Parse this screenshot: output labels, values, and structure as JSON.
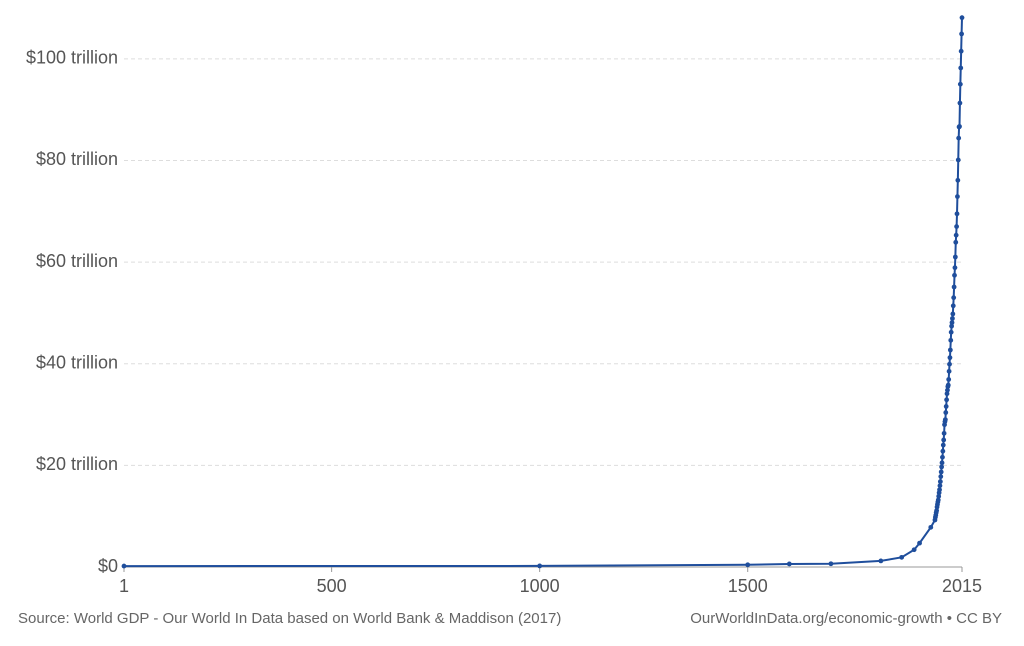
{
  "chart_data": {
    "type": "line",
    "x": [
      1,
      1000,
      1500,
      1600,
      1700,
      1820,
      1870,
      1900,
      1913,
      1940,
      1950,
      1951,
      1952,
      1953,
      1954,
      1955,
      1956,
      1957,
      1958,
      1959,
      1960,
      1961,
      1962,
      1963,
      1964,
      1965,
      1966,
      1967,
      1968,
      1969,
      1970,
      1971,
      1972,
      1973,
      1974,
      1975,
      1976,
      1977,
      1978,
      1979,
      1980,
      1981,
      1982,
      1983,
      1984,
      1985,
      1986,
      1987,
      1988,
      1989,
      1990,
      1991,
      1992,
      1993,
      1994,
      1995,
      1996,
      1997,
      1998,
      1999,
      2000,
      2001,
      2002,
      2003,
      2004,
      2005,
      2006,
      2007,
      2008,
      2009,
      2010,
      2011,
      2012,
      2013,
      2014,
      2015
    ],
    "values": [
      0.18,
      0.21,
      0.43,
      0.6,
      0.64,
      1.2,
      1.9,
      3.4,
      4.7,
      7.8,
      9.25,
      9.8,
      10.2,
      10.7,
      11.1,
      11.8,
      12.3,
      12.8,
      13.2,
      13.9,
      14.6,
      15.2,
      16.0,
      16.8,
      17.8,
      18.7,
      19.7,
      20.5,
      21.6,
      22.8,
      24.0,
      25.0,
      26.3,
      28.0,
      28.6,
      29.0,
      30.4,
      31.6,
      32.9,
      34.1,
      34.8,
      35.5,
      35.8,
      36.9,
      38.5,
      39.9,
      41.2,
      42.7,
      44.6,
      46.2,
      47.4,
      48.1,
      48.9,
      49.8,
      51.4,
      53.0,
      55.1,
      57.4,
      58.9,
      61.0,
      63.9,
      65.3,
      67.0,
      69.5,
      72.9,
      76.1,
      80.1,
      84.4,
      86.6,
      86.7,
      91.3,
      95.0,
      98.2,
      101.5,
      104.9,
      108.1
    ],
    "color": "#1f4e9c",
    "xlim": [
      1,
      2015
    ],
    "xticks": [
      1,
      500,
      1000,
      1500,
      2015
    ],
    "ylim": [
      0,
      110
    ],
    "yticks": [
      {
        "value": 0,
        "label": "$0"
      },
      {
        "value": 20,
        "label": "$20 trillion"
      },
      {
        "value": 40,
        "label": "$40 trillion"
      },
      {
        "value": 60,
        "label": "$60 trillion"
      },
      {
        "value": 80,
        "label": "$80 trillion"
      },
      {
        "value": 100,
        "label": "$100 trillion"
      }
    ],
    "grid": true,
    "source": "Source: World GDP - Our World In Data based on World Bank & Maddison (2017)",
    "credit": "OurWorldInData.org/economic-growth • CC BY"
  }
}
